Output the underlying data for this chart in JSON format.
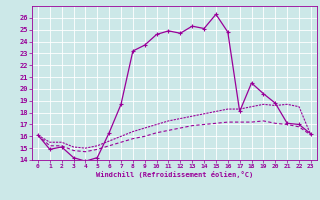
{
  "title": "",
  "xlabel": "Windchill (Refroidissement éolien,°C)",
  "background_color": "#cce8e8",
  "grid_color": "#ffffff",
  "line_color": "#990099",
  "xlim": [
    -0.5,
    23.5
  ],
  "ylim": [
    14,
    27
  ],
  "xticks": [
    0,
    1,
    2,
    3,
    4,
    5,
    6,
    7,
    8,
    9,
    10,
    11,
    12,
    13,
    14,
    15,
    16,
    17,
    18,
    19,
    20,
    21,
    22,
    23
  ],
  "yticks": [
    14,
    15,
    16,
    17,
    18,
    19,
    20,
    21,
    22,
    23,
    24,
    25,
    26
  ],
  "line1_x": [
    0,
    1,
    2,
    3,
    4,
    5,
    6,
    7,
    8,
    9,
    10,
    11,
    12,
    13,
    14,
    15,
    16,
    17,
    18,
    19,
    20,
    21,
    22,
    23
  ],
  "line1_y": [
    16.1,
    14.9,
    15.1,
    14.2,
    13.9,
    14.2,
    16.3,
    18.7,
    23.2,
    23.7,
    24.6,
    24.9,
    24.7,
    25.3,
    25.1,
    26.3,
    24.8,
    18.1,
    20.5,
    19.6,
    18.8,
    17.1,
    17.0,
    16.2
  ],
  "line2_x": [
    0,
    1,
    2,
    3,
    4,
    5,
    6,
    7,
    8,
    9,
    10,
    11,
    12,
    13,
    14,
    15,
    16,
    17,
    18,
    19,
    20,
    21,
    22,
    23
  ],
  "line2_y": [
    16.1,
    15.5,
    15.5,
    15.1,
    15.0,
    15.2,
    15.6,
    16.0,
    16.4,
    16.7,
    17.0,
    17.3,
    17.5,
    17.7,
    17.9,
    18.1,
    18.3,
    18.3,
    18.5,
    18.7,
    18.6,
    18.7,
    18.5,
    16.1
  ],
  "line3_x": [
    0,
    1,
    2,
    3,
    4,
    5,
    6,
    7,
    8,
    9,
    10,
    11,
    12,
    13,
    14,
    15,
    16,
    17,
    18,
    19,
    20,
    21,
    22,
    23
  ],
  "line3_y": [
    16.1,
    15.2,
    15.2,
    14.8,
    14.7,
    14.9,
    15.2,
    15.5,
    15.8,
    16.0,
    16.3,
    16.5,
    16.7,
    16.9,
    17.0,
    17.1,
    17.2,
    17.2,
    17.2,
    17.3,
    17.1,
    17.0,
    16.8,
    16.1
  ]
}
